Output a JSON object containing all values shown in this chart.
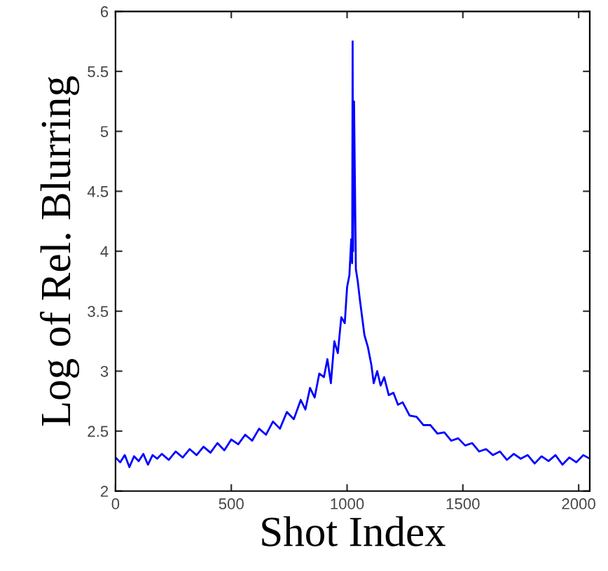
{
  "chart_data": {
    "type": "line",
    "xlabel": "Shot Index",
    "ylabel": "Log of Rel. Blurring",
    "xlim": [
      0,
      2048
    ],
    "ylim": [
      2,
      6
    ],
    "xticks": [
      0,
      500,
      1000,
      1500,
      2000
    ],
    "yticks": [
      2,
      2.5,
      3,
      3.5,
      4,
      4.5,
      5,
      5.5,
      6
    ],
    "grid": false,
    "marker": "none",
    "line_style": "solid",
    "series": [
      {
        "color": "#0000ff",
        "x": [
          0,
          20,
          40,
          60,
          80,
          100,
          120,
          140,
          160,
          180,
          200,
          230,
          260,
          290,
          320,
          350,
          380,
          410,
          440,
          470,
          500,
          530,
          560,
          590,
          620,
          650,
          680,
          710,
          740,
          770,
          800,
          820,
          840,
          860,
          880,
          900,
          915,
          930,
          945,
          960,
          975,
          990,
          1000,
          1010,
          1018,
          1022,
          1024,
          1026,
          1030,
          1038,
          1046,
          1055,
          1065,
          1075,
          1090,
          1105,
          1115,
          1130,
          1145,
          1160,
          1180,
          1200,
          1220,
          1240,
          1270,
          1300,
          1330,
          1360,
          1390,
          1420,
          1450,
          1480,
          1510,
          1540,
          1570,
          1600,
          1630,
          1660,
          1690,
          1720,
          1750,
          1780,
          1810,
          1840,
          1870,
          1900,
          1930,
          1960,
          1990,
          2020,
          2048
        ],
        "values": [
          2.28,
          2.24,
          2.3,
          2.2,
          2.29,
          2.25,
          2.31,
          2.22,
          2.3,
          2.27,
          2.31,
          2.26,
          2.33,
          2.28,
          2.35,
          2.3,
          2.37,
          2.32,
          2.4,
          2.34,
          2.43,
          2.39,
          2.47,
          2.42,
          2.52,
          2.47,
          2.58,
          2.52,
          2.66,
          2.6,
          2.76,
          2.68,
          2.86,
          2.78,
          2.98,
          2.95,
          3.1,
          2.9,
          3.25,
          3.15,
          3.45,
          3.4,
          3.7,
          3.8,
          4.1,
          3.9,
          5.75,
          4.0,
          5.25,
          3.85,
          3.75,
          3.6,
          3.45,
          3.3,
          3.2,
          3.05,
          2.9,
          3.0,
          2.88,
          2.95,
          2.8,
          2.82,
          2.72,
          2.74,
          2.63,
          2.62,
          2.55,
          2.55,
          2.48,
          2.49,
          2.42,
          2.44,
          2.38,
          2.4,
          2.33,
          2.35,
          2.3,
          2.33,
          2.26,
          2.31,
          2.27,
          2.3,
          2.23,
          2.29,
          2.25,
          2.3,
          2.22,
          2.28,
          2.24,
          2.3,
          2.27
        ]
      }
    ]
  }
}
